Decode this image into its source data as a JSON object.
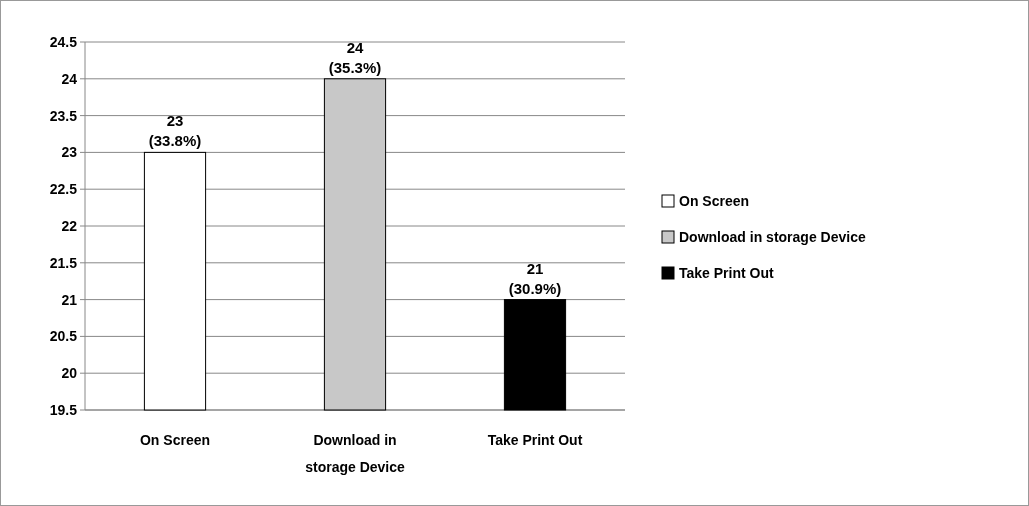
{
  "chart_data": {
    "type": "bar",
    "categories": [
      "On Screen",
      "Download in storage Device",
      "Take Print Out"
    ],
    "stacked": true,
    "series": [
      {
        "name": "On Screen",
        "color": "#ffffff",
        "values": [
          23,
          null,
          null
        ],
        "value_labels": [
          "23 (33.8%)",
          null,
          null
        ]
      },
      {
        "name": "Download in storage Device",
        "color": "#c8c8c8",
        "values": [
          null,
          24,
          null
        ],
        "value_labels": [
          null,
          "24 (35.3%)",
          null
        ]
      },
      {
        "name": "Take Print Out",
        "color": "#000000",
        "values": [
          null,
          null,
          21
        ],
        "value_labels": [
          null,
          null,
          "21 (30.9%)"
        ]
      }
    ],
    "ylim": [
      19.5,
      24.5
    ],
    "yticks": [
      19.5,
      20,
      20.5,
      21,
      21.5,
      22,
      22.5,
      23,
      23.5,
      24,
      24.5
    ],
    "grid": "y",
    "legend": "right"
  }
}
